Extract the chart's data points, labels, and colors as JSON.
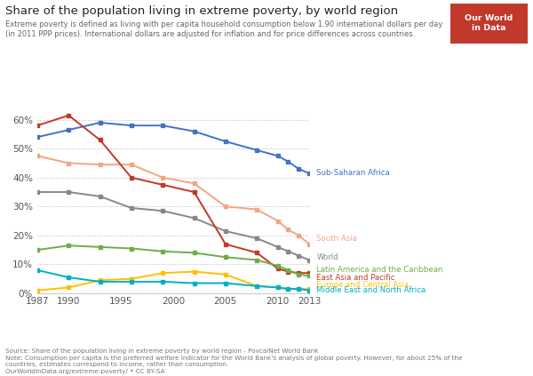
{
  "title": "Share of the population living in extreme poverty, by world region",
  "subtitle": "Extreme poverty is defined as living with per capita household consumption below 1.90 international dollars per day\n(in 2011 PPP prices). International dollars are adjusted for inflation and for price differences across countries.",
  "footer_line1": "Source: Share of the population living in extreme poverty by world region - PovcalNet World Bank",
  "footer_line2": "Note: Consumption per capita is the preferred welfare indicator for the World Bank's analysis of global poverty. However, for about 25% of the",
  "footer_line3": "countries, estimates correspond to income, rather than consumption.",
  "footer_line4": "OurWorldInData.org/extreme-poverty/ • CC BY-SA",
  "years": [
    1987,
    1990,
    1993,
    1996,
    1999,
    2002,
    2005,
    2008,
    2010,
    2011,
    2012,
    2013
  ],
  "series": {
    "Sub-Saharan Africa": {
      "color": "#4472C4",
      "values": [
        54.0,
        56.5,
        59.0,
        58.0,
        58.0,
        56.0,
        52.5,
        49.5,
        47.5,
        45.5,
        43.0,
        41.5
      ]
    },
    "South Asia": {
      "color": "#F4A582",
      "values": [
        47.5,
        45.0,
        44.5,
        44.5,
        40.0,
        38.0,
        30.0,
        29.0,
        25.0,
        22.0,
        20.0,
        17.0
      ]
    },
    "World": {
      "color": "#888888",
      "values": [
        35.0,
        35.0,
        33.5,
        29.5,
        28.5,
        26.0,
        21.5,
        19.0,
        16.0,
        14.5,
        13.0,
        11.5
      ]
    },
    "East Asia and Pacific": {
      "color": "#C0392B",
      "values": [
        58.0,
        61.5,
        53.0,
        40.0,
        37.5,
        35.0,
        17.0,
        14.0,
        8.5,
        7.5,
        7.0,
        7.0
      ]
    },
    "Latin America and the Caribbean": {
      "color": "#70AD47",
      "values": [
        15.0,
        16.5,
        16.0,
        15.5,
        14.5,
        14.0,
        12.5,
        11.5,
        9.5,
        8.0,
        6.5,
        6.0
      ]
    },
    "Europe and Central Asia": {
      "color": "#FFC000",
      "values": [
        1.0,
        2.0,
        4.5,
        5.0,
        7.0,
        7.5,
        6.5,
        2.5,
        2.0,
        1.5,
        1.5,
        1.5
      ]
    },
    "Middle East and North Africa": {
      "color": "#00B0C8",
      "values": [
        8.0,
        5.5,
        4.0,
        4.0,
        4.0,
        3.5,
        3.5,
        2.5,
        2.0,
        1.5,
        1.5,
        1.0
      ]
    }
  },
  "ylim": [
    0,
    65
  ],
  "yticks": [
    0,
    10,
    20,
    30,
    40,
    50,
    60
  ],
  "xlim": [
    1987,
    2013
  ],
  "xticks": [
    1987,
    1990,
    1995,
    2000,
    2005,
    2010,
    2013
  ],
  "background_color": "#FFFFFF",
  "logo_bg_color": "#C0392B",
  "logo_text": "Our World\nin Data",
  "label_data": [
    {
      "name": "Sub-Saharan Africa",
      "y_label": 41.5,
      "color": "#4472C4"
    },
    {
      "name": "South Asia",
      "y_label": 19.0,
      "color": "#F4A582"
    },
    {
      "name": "World",
      "y_label": 12.5,
      "color": "#888888"
    },
    {
      "name": "Latin America and the Caribbean",
      "y_label": 8.0,
      "color": "#70AD47"
    },
    {
      "name": "East Asia and Pacific",
      "y_label": 5.5,
      "color": "#C0392B"
    },
    {
      "name": "Europe and Central Asia",
      "y_label": 3.0,
      "color": "#FFC000"
    },
    {
      "name": "Middle East and North Africa",
      "y_label": 1.0,
      "color": "#00B0C8"
    }
  ]
}
